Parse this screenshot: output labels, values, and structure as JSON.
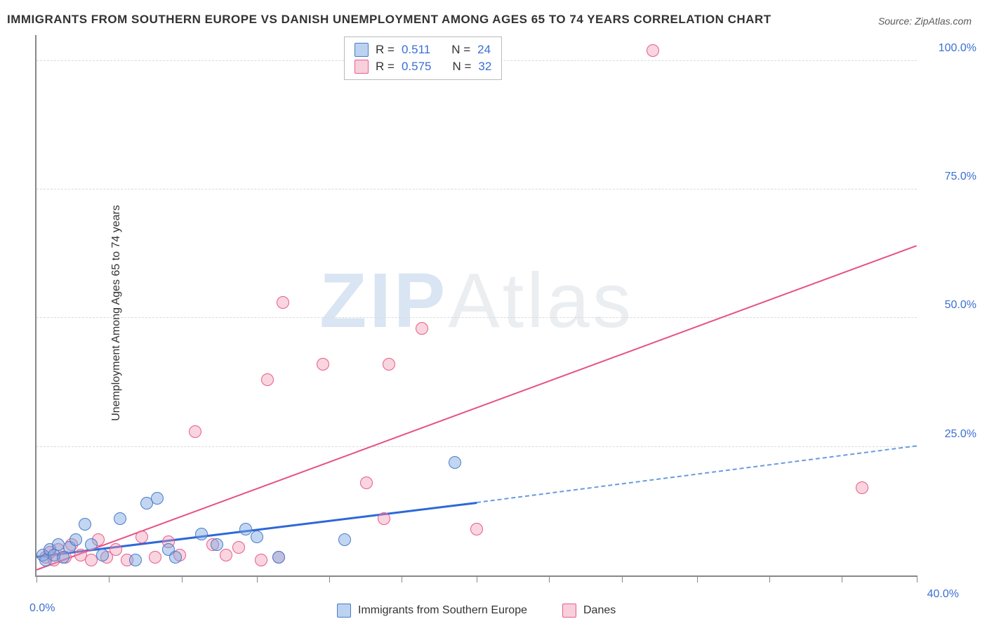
{
  "title": "IMMIGRANTS FROM SOUTHERN EUROPE VS DANISH UNEMPLOYMENT AMONG AGES 65 TO 74 YEARS CORRELATION CHART",
  "source_label": "Source: ZipAtlas.com",
  "ylabel": "Unemployment Among Ages 65 to 74 years",
  "watermark_a": "ZIP",
  "watermark_b": "Atlas",
  "chart": {
    "type": "scatter",
    "xlim": [
      0,
      40
    ],
    "ylim": [
      0,
      105
    ],
    "x_tick_positions": [
      0,
      3.3,
      6.6,
      10,
      13.3,
      16.6,
      20,
      23.3,
      26.6,
      30,
      33.3,
      36.6,
      40
    ],
    "x_visible_labels": {
      "0": "0.0%",
      "40": "40.0%"
    },
    "y_gridlines": [
      25,
      50,
      75,
      100
    ],
    "y_labels": {
      "25": "25.0%",
      "50": "50.0%",
      "75": "75.0%",
      "100": "100.0%"
    },
    "background_color": "#ffffff",
    "grid_color": "#dadada",
    "axis_color": "#888888",
    "tick_label_color": "#3b6fd4",
    "marker_radius": 9
  },
  "series": {
    "blue": {
      "label": "Immigrants from Southern Europe",
      "fill": "rgba(120,165,225,0.45)",
      "stroke": "#4a7bc8",
      "R": "0.511",
      "N": "24",
      "trend": {
        "x1": 0,
        "y1": 3.5,
        "x2_solid": 20,
        "y2_solid": 14,
        "x2_dash": 40,
        "y2_dash": 25,
        "color_solid": "#2c68d8",
        "color_dash": "#6a9be0"
      },
      "points": [
        [
          0.3,
          4
        ],
        [
          0.4,
          3
        ],
        [
          0.6,
          5
        ],
        [
          0.8,
          4
        ],
        [
          1.0,
          6
        ],
        [
          1.2,
          3.5
        ],
        [
          1.5,
          5.5
        ],
        [
          1.8,
          7
        ],
        [
          2.2,
          10
        ],
        [
          2.5,
          6
        ],
        [
          3.0,
          4
        ],
        [
          3.8,
          11
        ],
        [
          4.5,
          3
        ],
        [
          5.0,
          14
        ],
        [
          5.5,
          15
        ],
        [
          6.0,
          5
        ],
        [
          6.3,
          3.5
        ],
        [
          7.5,
          8
        ],
        [
          8.2,
          6
        ],
        [
          9.5,
          9
        ],
        [
          10.0,
          7.5
        ],
        [
          11.0,
          3.5
        ],
        [
          14.0,
          7
        ],
        [
          19.0,
          22
        ]
      ]
    },
    "pink": {
      "label": "Danes",
      "fill": "rgba(240,150,175,0.4)",
      "stroke": "#e85b8a",
      "R": "0.575",
      "N": "32",
      "trend": {
        "x1": 0,
        "y1": 1,
        "x2_solid": 40,
        "y2_solid": 64,
        "color": "#e65186"
      },
      "points": [
        [
          0.4,
          3.5
        ],
        [
          0.6,
          4.5
        ],
        [
          0.8,
          3
        ],
        [
          1.0,
          5
        ],
        [
          1.3,
          3.5
        ],
        [
          1.6,
          6
        ],
        [
          2.0,
          4
        ],
        [
          2.5,
          3
        ],
        [
          2.8,
          7
        ],
        [
          3.2,
          3.5
        ],
        [
          3.6,
          5
        ],
        [
          4.1,
          3
        ],
        [
          4.8,
          7.5
        ],
        [
          5.4,
          3.5
        ],
        [
          6.0,
          6.5
        ],
        [
          6.5,
          4
        ],
        [
          7.2,
          28
        ],
        [
          8.0,
          6
        ],
        [
          8.6,
          4
        ],
        [
          9.2,
          5.5
        ],
        [
          10.2,
          3
        ],
        [
          10.5,
          38
        ],
        [
          11.0,
          3.5
        ],
        [
          11.2,
          53
        ],
        [
          13.0,
          41
        ],
        [
          15.0,
          18
        ],
        [
          15.8,
          11
        ],
        [
          16.0,
          41
        ],
        [
          17.5,
          48
        ],
        [
          20.0,
          9
        ],
        [
          28.0,
          102
        ],
        [
          37.5,
          17
        ]
      ]
    }
  },
  "legend_box": {
    "r_label": "R =",
    "n_label": "N ="
  },
  "bottom_legend": {
    "items": [
      "blue",
      "pink"
    ]
  }
}
